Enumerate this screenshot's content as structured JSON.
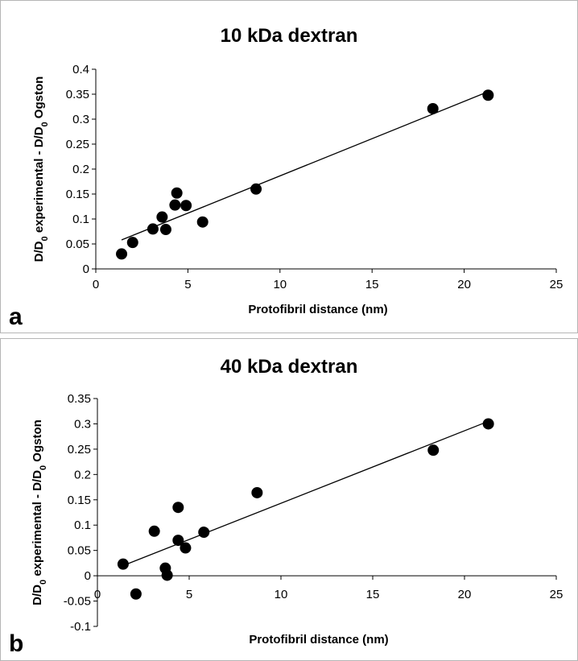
{
  "chart_data": [
    {
      "panel": "a",
      "type": "scatter",
      "title": "10 kDa dextran",
      "xlabel": "Protofibril distance (nm)",
      "ylabel": {
        "p1": "D/D",
        "s1": "0",
        "p2": " experimental - D/D",
        "s2": "0",
        "p3": " Ogston"
      },
      "xlim": [
        0,
        25
      ],
      "ylim": [
        0,
        0.4
      ],
      "xticks": [
        0,
        5,
        10,
        15,
        20,
        25
      ],
      "yticks": [
        0,
        0.05,
        0.1,
        0.15,
        0.2,
        0.25,
        0.3,
        0.35,
        0.4
      ],
      "xtick_labels": [
        "0",
        "5",
        "10",
        "15",
        "20",
        "25"
      ],
      "ytick_labels": [
        "0",
        "0.05",
        "0.1",
        "0.15",
        "0.2",
        "0.25",
        "0.3",
        "0.35",
        "0.4"
      ],
      "points": [
        {
          "x": 1.4,
          "y": 0.03
        },
        {
          "x": 2.0,
          "y": 0.053
        },
        {
          "x": 3.1,
          "y": 0.08
        },
        {
          "x": 3.6,
          "y": 0.104
        },
        {
          "x": 3.8,
          "y": 0.079
        },
        {
          "x": 4.3,
          "y": 0.128
        },
        {
          "x": 4.4,
          "y": 0.152
        },
        {
          "x": 4.9,
          "y": 0.127
        },
        {
          "x": 5.8,
          "y": 0.094
        },
        {
          "x": 8.7,
          "y": 0.16
        },
        {
          "x": 18.3,
          "y": 0.321
        },
        {
          "x": 21.3,
          "y": 0.348
        }
      ],
      "trendline": {
        "x": [
          1.4,
          21.3
        ],
        "y": [
          0.058,
          0.355
        ]
      },
      "grid": false,
      "legend": "none"
    },
    {
      "panel": "b",
      "type": "scatter",
      "title": "40 kDa dextran",
      "xlabel": "Protofibril distance (nm)",
      "ylabel": {
        "p1": "D/D",
        "s1": "0",
        "p2": " experimental - D/D",
        "s2": "0",
        "p3": " Ogston"
      },
      "xlim": [
        0,
        25
      ],
      "ylim": [
        -0.1,
        0.35
      ],
      "xticks": [
        0,
        5,
        10,
        15,
        20,
        25
      ],
      "yticks": [
        -0.1,
        -0.05,
        0,
        0.05,
        0.1,
        0.15,
        0.2,
        0.25,
        0.3,
        0.35
      ],
      "xtick_labels": [
        "0",
        "5",
        "10",
        "15",
        "20",
        "25"
      ],
      "ytick_labels": [
        "-0.1",
        "-0.05",
        "0",
        "0.05",
        "0.1",
        "0.15",
        "0.2",
        "0.25",
        "0.3",
        "0.35"
      ],
      "points": [
        {
          "x": 1.4,
          "y": 0.023
        },
        {
          "x": 2.1,
          "y": -0.036
        },
        {
          "x": 3.1,
          "y": 0.088
        },
        {
          "x": 3.7,
          "y": 0.015
        },
        {
          "x": 3.8,
          "y": 0.001
        },
        {
          "x": 4.4,
          "y": 0.135
        },
        {
          "x": 4.4,
          "y": 0.07
        },
        {
          "x": 4.8,
          "y": 0.055
        },
        {
          "x": 5.8,
          "y": 0.086
        },
        {
          "x": 8.7,
          "y": 0.164
        },
        {
          "x": 18.3,
          "y": 0.248
        },
        {
          "x": 21.3,
          "y": 0.3
        }
      ],
      "trendline": {
        "x": [
          1.4,
          21.3
        ],
        "y": [
          0.02,
          0.305
        ]
      },
      "grid": false,
      "legend": "none"
    }
  ]
}
